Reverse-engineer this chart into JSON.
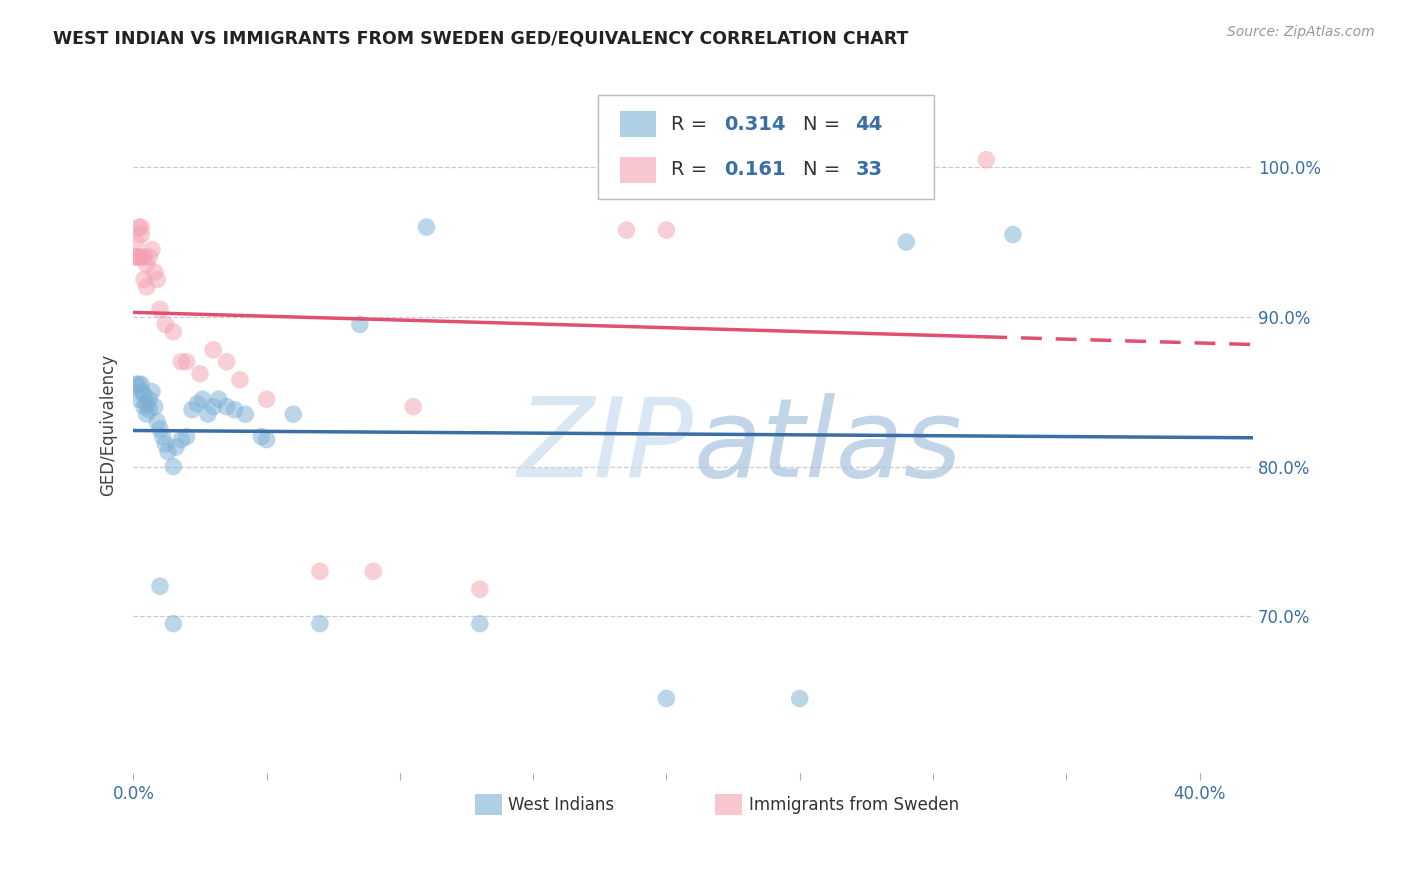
{
  "title": "WEST INDIAN VS IMMIGRANTS FROM SWEDEN GED/EQUIVALENCY CORRELATION CHART",
  "source": "Source: ZipAtlas.com",
  "ylabel": "GED/Equivalency",
  "watermark_zip": "ZIP",
  "watermark_atlas": "atlas",
  "R1": "0.314",
  "N1": "44",
  "R2": "0.161",
  "N2": "33",
  "blue_color": "#7BAFD4",
  "pink_color": "#F4A0B0",
  "blue_line": "#3A6EA5",
  "pink_line": "#E05070",
  "xlim": [
    0.0,
    0.42
  ],
  "ylim": [
    0.595,
    1.06
  ],
  "xtick_positions": [
    0.0,
    0.4
  ],
  "xtick_labels": [
    "0.0%",
    "40.0%"
  ],
  "ytick_positions": [
    0.7,
    0.8,
    0.9,
    1.0
  ],
  "ytick_labels": [
    "70.0%",
    "80.0%",
    "90.0%",
    "100.0%"
  ],
  "wi_x": [
    0.001,
    0.002,
    0.002,
    0.003,
    0.003,
    0.004,
    0.004,
    0.005,
    0.005,
    0.006,
    0.006,
    0.007,
    0.008,
    0.009,
    0.01,
    0.011,
    0.012,
    0.013,
    0.015,
    0.016,
    0.018,
    0.02,
    0.022,
    0.024,
    0.026,
    0.028,
    0.03,
    0.032,
    0.035,
    0.038,
    0.042,
    0.048,
    0.05,
    0.06,
    0.07,
    0.085,
    0.11,
    0.13,
    0.2,
    0.25,
    0.01,
    0.015,
    0.29,
    0.33
  ],
  "wi_y": [
    0.855,
    0.845,
    0.855,
    0.85,
    0.855,
    0.84,
    0.848,
    0.835,
    0.842,
    0.845,
    0.838,
    0.85,
    0.84,
    0.83,
    0.825,
    0.82,
    0.815,
    0.81,
    0.8,
    0.813,
    0.818,
    0.82,
    0.838,
    0.842,
    0.845,
    0.835,
    0.84,
    0.845,
    0.84,
    0.838,
    0.835,
    0.82,
    0.818,
    0.835,
    0.695,
    0.895,
    0.96,
    0.695,
    0.645,
    0.645,
    0.72,
    0.695,
    0.95,
    0.955
  ],
  "sw_x": [
    0.001,
    0.001,
    0.001,
    0.002,
    0.002,
    0.003,
    0.003,
    0.003,
    0.004,
    0.004,
    0.005,
    0.005,
    0.006,
    0.007,
    0.008,
    0.009,
    0.01,
    0.012,
    0.015,
    0.018,
    0.02,
    0.025,
    0.03,
    0.035,
    0.04,
    0.05,
    0.07,
    0.09,
    0.105,
    0.13,
    0.185,
    0.2,
    0.32
  ],
  "sw_y": [
    0.94,
    0.95,
    0.94,
    0.96,
    0.94,
    0.955,
    0.94,
    0.96,
    0.925,
    0.94,
    0.92,
    0.935,
    0.94,
    0.945,
    0.93,
    0.925,
    0.905,
    0.895,
    0.89,
    0.87,
    0.87,
    0.862,
    0.878,
    0.87,
    0.858,
    0.845,
    0.73,
    0.73,
    0.84,
    0.718,
    0.958,
    0.958,
    1.005
  ]
}
